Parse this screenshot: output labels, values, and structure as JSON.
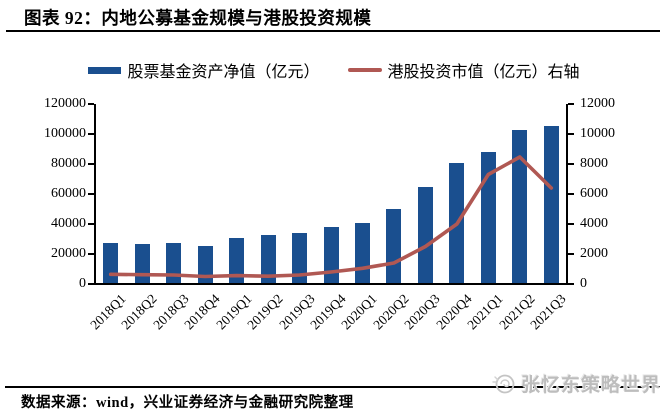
{
  "header": {
    "title": "图表 92：内地公募基金规模与港股投资规模"
  },
  "legend": {
    "items": [
      {
        "label": "股票基金资产净值（亿元）",
        "marker": "bar"
      },
      {
        "label": "港股投资市值（亿元）右轴",
        "marker": "line"
      }
    ]
  },
  "chart_data": {
    "type": "bar+line",
    "title": "内地公募基金规模与港股投资规模",
    "categories": [
      "2018Q1",
      "2018Q2",
      "2018Q3",
      "2018Q4",
      "2019Q1",
      "2019Q2",
      "2019Q3",
      "2019Q4",
      "2020Q1",
      "2020Q2",
      "2020Q3",
      "2020Q4",
      "2021Q1",
      "2021Q2",
      "2021Q3"
    ],
    "series": [
      {
        "name": "股票基金资产净值（亿元）",
        "type": "bar",
        "axis": "left",
        "color": "#1A4F8F",
        "values": [
          27100,
          26700,
          27100,
          25500,
          30700,
          32700,
          34000,
          38200,
          40400,
          50000,
          64900,
          80700,
          87800,
          102700,
          105100
        ]
      },
      {
        "name": "港股投资市值（亿元）",
        "type": "line",
        "axis": "right",
        "color": "#B05853",
        "values": [
          650,
          620,
          600,
          500,
          560,
          520,
          600,
          800,
          1050,
          1400,
          2500,
          4000,
          7300,
          8470,
          6400
        ]
      }
    ],
    "left_axis": {
      "min": 0,
      "max": 120000,
      "step": 20000,
      "tick_labels": [
        "120000",
        "100000",
        "80000",
        "60000",
        "40000",
        "20000",
        "0"
      ]
    },
    "right_axis": {
      "min": 0,
      "max": 12000,
      "step": 2000,
      "tick_labels": [
        "12000",
        "10000",
        "8000",
        "6000",
        "4000",
        "2000",
        "0"
      ]
    },
    "grid": false,
    "legend_position": "top"
  },
  "footer": {
    "source": "数据来源：wind，兴业证券经济与金融研究院整理"
  },
  "watermark": {
    "text": "张忆东策略世界"
  }
}
